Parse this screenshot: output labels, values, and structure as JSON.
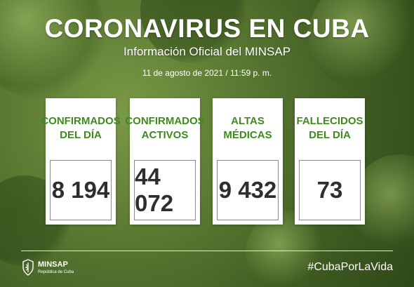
{
  "header": {
    "title": "CORONAVIRUS EN CUBA",
    "subtitle": "Información Oficial del MINSAP",
    "date": "11 de agosto de 2021 / 11:59 p. m."
  },
  "stats": [
    {
      "label": "CONFIRMADOS DEL DÍA",
      "value": "8 194"
    },
    {
      "label": "CONFIRMADOS ACTIVOS",
      "value": "44 072"
    },
    {
      "label": "ALTAS MÉDICAS",
      "value": "9 432"
    },
    {
      "label": "FALLECIDOS DEL DÍA",
      "value": "73"
    }
  ],
  "footer": {
    "logo_name": "MINSAP",
    "logo_sub": "República de Cuba",
    "hashtag": "#CubaPorLaVida"
  },
  "colors": {
    "background": "#5b7a32",
    "label_green": "#3f8a1e",
    "value_text": "#2e2e2e"
  },
  "icons": [
    "minsap-emblem-icon"
  ]
}
